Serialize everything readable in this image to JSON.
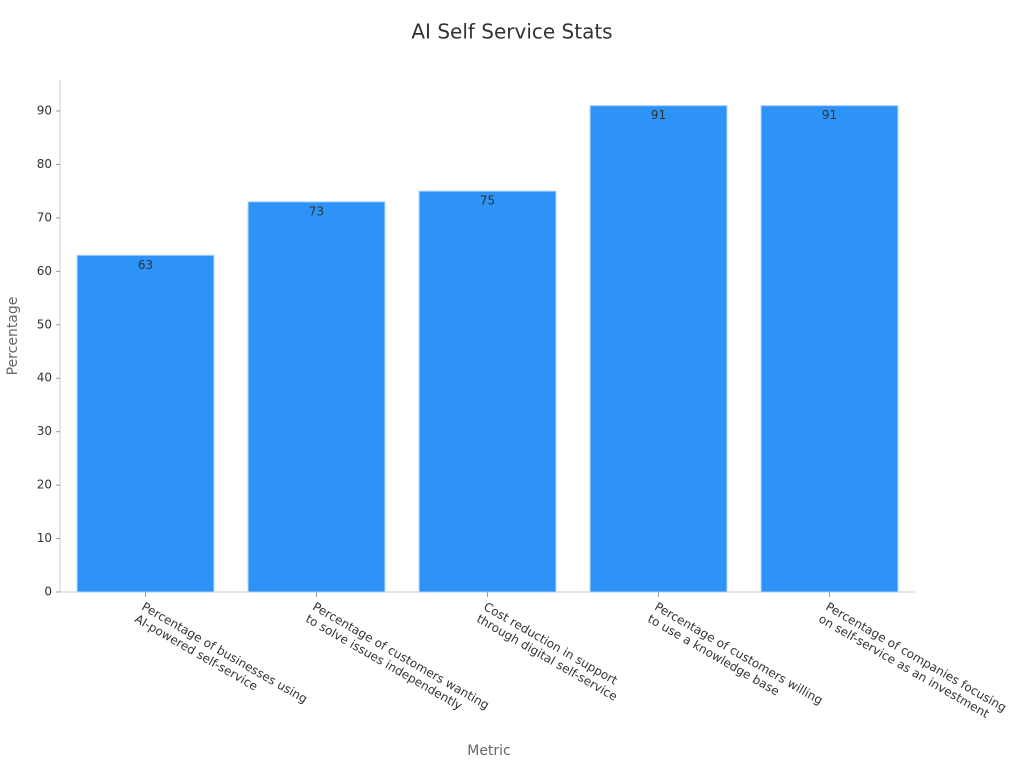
{
  "chart_data": {
    "type": "bar",
    "title": "AI Self Service Stats",
    "x_label": "Metric",
    "y_label": "Percentage",
    "categories": [
      [
        "Percentage of businesses using",
        "AI-powered self-service"
      ],
      [
        "Percentage of customers wanting",
        "to solve issues independently"
      ],
      [
        "Cost reduction in support",
        "through digital self-service"
      ],
      [
        "Percentage of customers willing",
        "to use a knowledge base"
      ],
      [
        "Percentage of companies focusing",
        "on self-service as an investment"
      ]
    ],
    "values": [
      63,
      73,
      75,
      91,
      91
    ],
    "color": "#2e93f7",
    "ylim": [
      0,
      95.8
    ],
    "yticks": [
      0,
      10,
      20,
      30,
      40,
      50,
      60,
      70,
      80,
      90
    ],
    "grid": false
  }
}
